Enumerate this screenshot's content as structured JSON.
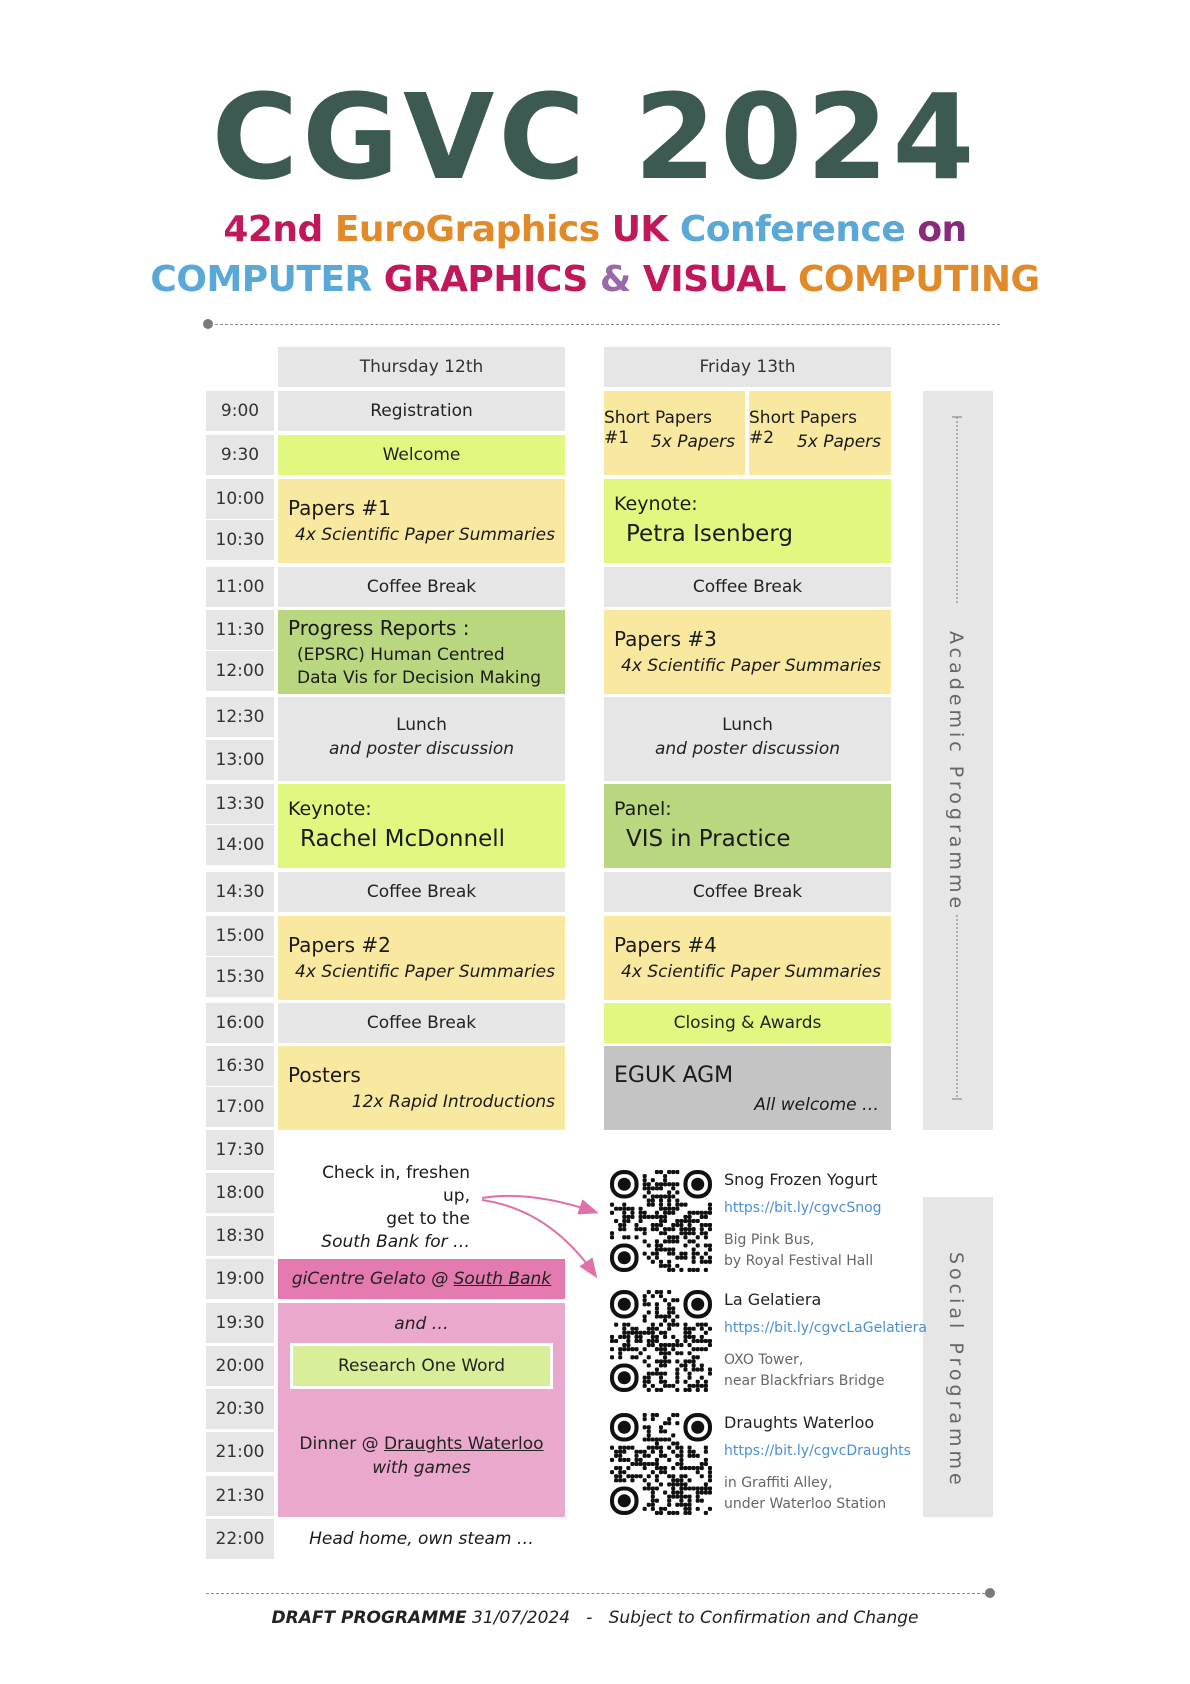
{
  "title": "CGVC 2024",
  "subtitle": {
    "line1": [
      {
        "text": "42nd ",
        "color": "crimson"
      },
      {
        "text": "EuroGraphics ",
        "color": "orange"
      },
      {
        "text": "UK ",
        "color": "crimson"
      },
      {
        "text": "Conference ",
        "color": "blue"
      },
      {
        "text": "on",
        "color": "purple"
      }
    ],
    "line2": [
      {
        "text": "COMPUTER ",
        "color": "blue"
      },
      {
        "text": "GRAPHICS ",
        "color": "crimson"
      },
      {
        "text": "& ",
        "color": "lilac"
      },
      {
        "text": "VISUAL ",
        "color": "crimson"
      },
      {
        "text": "COMPUTING",
        "color": "orange"
      }
    ]
  },
  "days": {
    "thursday": "Thursday 12th",
    "friday": "Friday 13th"
  },
  "times": [
    "9:00",
    "9:30",
    "10:00",
    "10:30",
    "11:00",
    "11:30",
    "12:00",
    "12:30",
    "13:00",
    "13:30",
    "14:00",
    "14:30",
    "15:00",
    "15:30",
    "16:00",
    "16:30",
    "17:00",
    "17:30",
    "18:00",
    "18:30",
    "19:00",
    "19:30",
    "20:00",
    "20:30",
    "21:00",
    "21:30",
    "22:00"
  ],
  "thursday": {
    "registration": "Registration",
    "welcome": "Welcome",
    "papers1_title": "Papers #1",
    "papers1_sub": "4x Scientific Paper Summaries",
    "coffee1": "Coffee Break",
    "progress_title": "Progress Reports :",
    "progress_line1": "(EPSRC) Human Centred",
    "progress_line2": "Data Vis for Decision Making",
    "lunch": "Lunch",
    "lunch_sub": "and poster discussion",
    "keynote_label": "Keynote:",
    "keynote_name": "Rachel McDonnell",
    "coffee2": "Coffee Break",
    "papers2_title": "Papers #2",
    "papers2_sub": "4x Scientific Paper Summaries",
    "coffee3": "Coffee Break",
    "posters_title": "Posters",
    "posters_sub": "12x Rapid Introductions",
    "checkin_line1": "Check in, freshen up,",
    "checkin_line2": "get to the",
    "checkin_line3": "South Bank for …",
    "gelato_prefix": "giCentre Gelato @ ",
    "gelato_link": "South Bank",
    "and": "and …",
    "research": "Research One Word",
    "dinner_prefix": "Dinner @ ",
    "dinner_link": "Draughts Waterloo",
    "dinner_sub": "with games",
    "home": "Head home, own steam …"
  },
  "friday": {
    "short1_title": "Short Papers #1",
    "short1_sub": "5x Papers",
    "short2_title": "Short Papers #2",
    "short2_sub": "5x Papers",
    "keynote_label": "Keynote:",
    "keynote_name": "Petra Isenberg",
    "coffee1": "Coffee Break",
    "papers3_title": "Papers #3",
    "papers3_sub": "4x Scientific Paper Summaries",
    "lunch": "Lunch",
    "lunch_sub": "and poster discussion",
    "panel_label": "Panel:",
    "panel_name": "VIS in Practice",
    "coffee2": "Coffee Break",
    "papers4_title": "Papers #4",
    "papers4_sub": "4x Scientific Paper Summaries",
    "closing": "Closing & Awards",
    "agm_title": "EGUK AGM",
    "agm_sub": "All welcome …"
  },
  "side": {
    "academic": "Academic Programme",
    "social": "Social Programme"
  },
  "venues": [
    {
      "name": "Snog Frozen Yogurt",
      "link": "https://bit.ly/cgvcSnog",
      "addr1": "Big Pink Bus,",
      "addr2": "by Royal Festival Hall"
    },
    {
      "name": "La Gelatiera",
      "link": "https://bit.ly/cgvcLaGelatiera",
      "addr1": "OXO Tower,",
      "addr2": "near Blackfriars Bridge"
    },
    {
      "name": "Draughts Waterloo",
      "link": "https://bit.ly/cgvcDraughts",
      "addr1": "in Graffiti Alley,",
      "addr2": "under Waterloo Station"
    }
  ],
  "footer": {
    "bold": "DRAFT PROGRAMME",
    "date": " 31/07/2024   -   ",
    "rest": "Subject to Confirmation and Change"
  },
  "colors": {
    "title": "#3d5a52",
    "crimson": "#c0185a",
    "orange": "#e08a2a",
    "blue": "#5aa8d8",
    "purple": "#8a2a7a",
    "lilac": "#9a6aa8",
    "gray_block": "#e6e6e6",
    "yellow_block": "#f9e8a0",
    "lime_block": "#e0f880",
    "green_block": "#b8d77e",
    "agm_block": "#c4c4c4",
    "pink_dark": "#e47ab0",
    "pink_light": "#eaa8cc",
    "arrow": "#e070a8",
    "link": "#4a8fd8"
  }
}
